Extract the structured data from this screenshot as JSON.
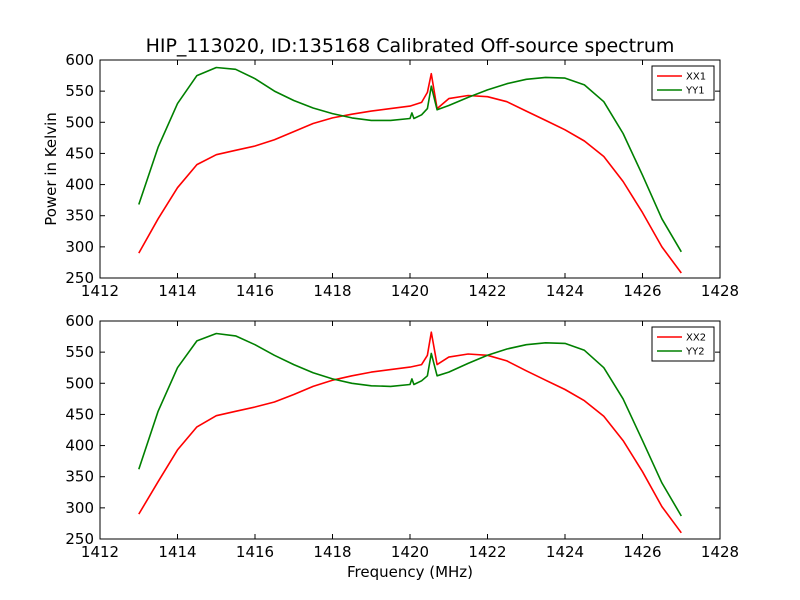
{
  "figure": {
    "title": "HIP_113020, ID:135168 Calibrated Off-source spectrum"
  },
  "chart_data": [
    {
      "type": "line",
      "title": "HIP_113020, ID:135168 Calibrated Off-source spectrum",
      "xlabel": "",
      "ylabel": "Power in Kelvin",
      "xlim": [
        1412,
        1428
      ],
      "ylim": [
        250,
        600
      ],
      "x_ticks": [
        1412,
        1414,
        1416,
        1418,
        1420,
        1422,
        1424,
        1426,
        1428
      ],
      "y_ticks": [
        250,
        300,
        350,
        400,
        450,
        500,
        550,
        600
      ],
      "legend_position": "top-right",
      "series": [
        {
          "name": "XX1",
          "color": "#ff0000",
          "x": [
            1413.0,
            1413.5,
            1414.0,
            1414.5,
            1415.0,
            1415.5,
            1416.0,
            1416.5,
            1417.0,
            1417.5,
            1418.0,
            1418.5,
            1419.0,
            1419.5,
            1420.0,
            1420.3,
            1420.45,
            1420.55,
            1420.7,
            1421.0,
            1421.5,
            1422.0,
            1422.5,
            1423.0,
            1423.5,
            1424.0,
            1424.5,
            1425.0,
            1425.5,
            1426.0,
            1426.5,
            1427.0
          ],
          "y": [
            290,
            345,
            395,
            432,
            448,
            455,
            462,
            472,
            485,
            498,
            507,
            513,
            518,
            522,
            526,
            532,
            548,
            578,
            522,
            538,
            543,
            541,
            533,
            518,
            503,
            488,
            470,
            445,
            405,
            355,
            300,
            258
          ]
        },
        {
          "name": "YY1",
          "color": "#008000",
          "x": [
            1413.0,
            1413.5,
            1414.0,
            1414.5,
            1415.0,
            1415.5,
            1416.0,
            1416.5,
            1417.0,
            1417.5,
            1418.0,
            1418.5,
            1419.0,
            1419.5,
            1420.0,
            1420.05,
            1420.1,
            1420.3,
            1420.45,
            1420.55,
            1420.7,
            1421.0,
            1421.5,
            1422.0,
            1422.5,
            1423.0,
            1423.5,
            1424.0,
            1424.5,
            1425.0,
            1425.5,
            1426.0,
            1426.5,
            1427.0
          ],
          "y": [
            368,
            460,
            530,
            575,
            588,
            585,
            570,
            550,
            535,
            523,
            514,
            507,
            503,
            503,
            506,
            515,
            506,
            512,
            522,
            558,
            520,
            527,
            540,
            552,
            562,
            569,
            572,
            571,
            560,
            533,
            482,
            415,
            345,
            292
          ]
        }
      ]
    },
    {
      "type": "line",
      "title": "",
      "xlabel": "Frequency (MHz)",
      "ylabel": "",
      "xlim": [
        1412,
        1428
      ],
      "ylim": [
        250,
        600
      ],
      "x_ticks": [
        1412,
        1414,
        1416,
        1418,
        1420,
        1422,
        1424,
        1426,
        1428
      ],
      "y_ticks": [
        250,
        300,
        350,
        400,
        450,
        500,
        550,
        600
      ],
      "legend_position": "top-right",
      "series": [
        {
          "name": "XX2",
          "color": "#ff0000",
          "x": [
            1413.0,
            1413.5,
            1414.0,
            1414.5,
            1415.0,
            1415.5,
            1416.0,
            1416.5,
            1417.0,
            1417.5,
            1418.0,
            1418.5,
            1419.0,
            1419.5,
            1420.0,
            1420.3,
            1420.45,
            1420.55,
            1420.7,
            1421.0,
            1421.5,
            1422.0,
            1422.5,
            1423.0,
            1423.5,
            1424.0,
            1424.5,
            1425.0,
            1425.5,
            1426.0,
            1426.5,
            1427.0
          ],
          "y": [
            290,
            342,
            393,
            430,
            448,
            455,
            462,
            470,
            482,
            495,
            505,
            512,
            518,
            522,
            526,
            530,
            545,
            582,
            530,
            542,
            547,
            545,
            536,
            520,
            505,
            490,
            472,
            447,
            408,
            358,
            302,
            260
          ]
        },
        {
          "name": "YY2",
          "color": "#008000",
          "x": [
            1413.0,
            1413.5,
            1414.0,
            1414.5,
            1415.0,
            1415.5,
            1416.0,
            1416.5,
            1417.0,
            1417.5,
            1418.0,
            1418.5,
            1419.0,
            1419.5,
            1420.0,
            1420.05,
            1420.1,
            1420.3,
            1420.45,
            1420.55,
            1420.7,
            1421.0,
            1421.5,
            1422.0,
            1422.5,
            1423.0,
            1423.5,
            1424.0,
            1424.5,
            1425.0,
            1425.5,
            1426.0,
            1426.5,
            1427.0
          ],
          "y": [
            362,
            455,
            525,
            568,
            580,
            576,
            562,
            545,
            530,
            517,
            507,
            500,
            496,
            495,
            498,
            507,
            498,
            504,
            512,
            548,
            512,
            518,
            532,
            545,
            555,
            562,
            565,
            564,
            553,
            525,
            475,
            408,
            340,
            287
          ]
        }
      ]
    }
  ]
}
